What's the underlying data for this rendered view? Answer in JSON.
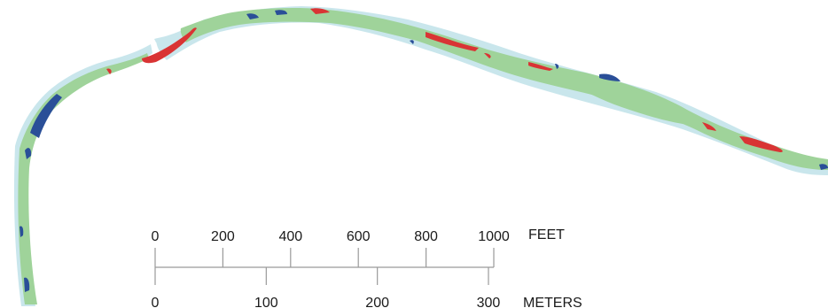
{
  "colors": {
    "background": "#ffffff",
    "wetted_edge": "#c9e6ec",
    "main_class": "#9fd39a",
    "deep_class": "#2a4f98",
    "erosion_class": "#d93434"
  },
  "scale_bar": {
    "feet": {
      "unit_label": "FEET",
      "ticks": [
        "0",
        "200",
        "400",
        "600",
        "800",
        "1000"
      ],
      "values": [
        0,
        200,
        400,
        600,
        800,
        1000
      ]
    },
    "meters": {
      "unit_label": "METERS",
      "ticks": [
        "0",
        "100",
        "200",
        "300"
      ],
      "values": [
        0,
        100,
        200,
        300
      ]
    }
  }
}
